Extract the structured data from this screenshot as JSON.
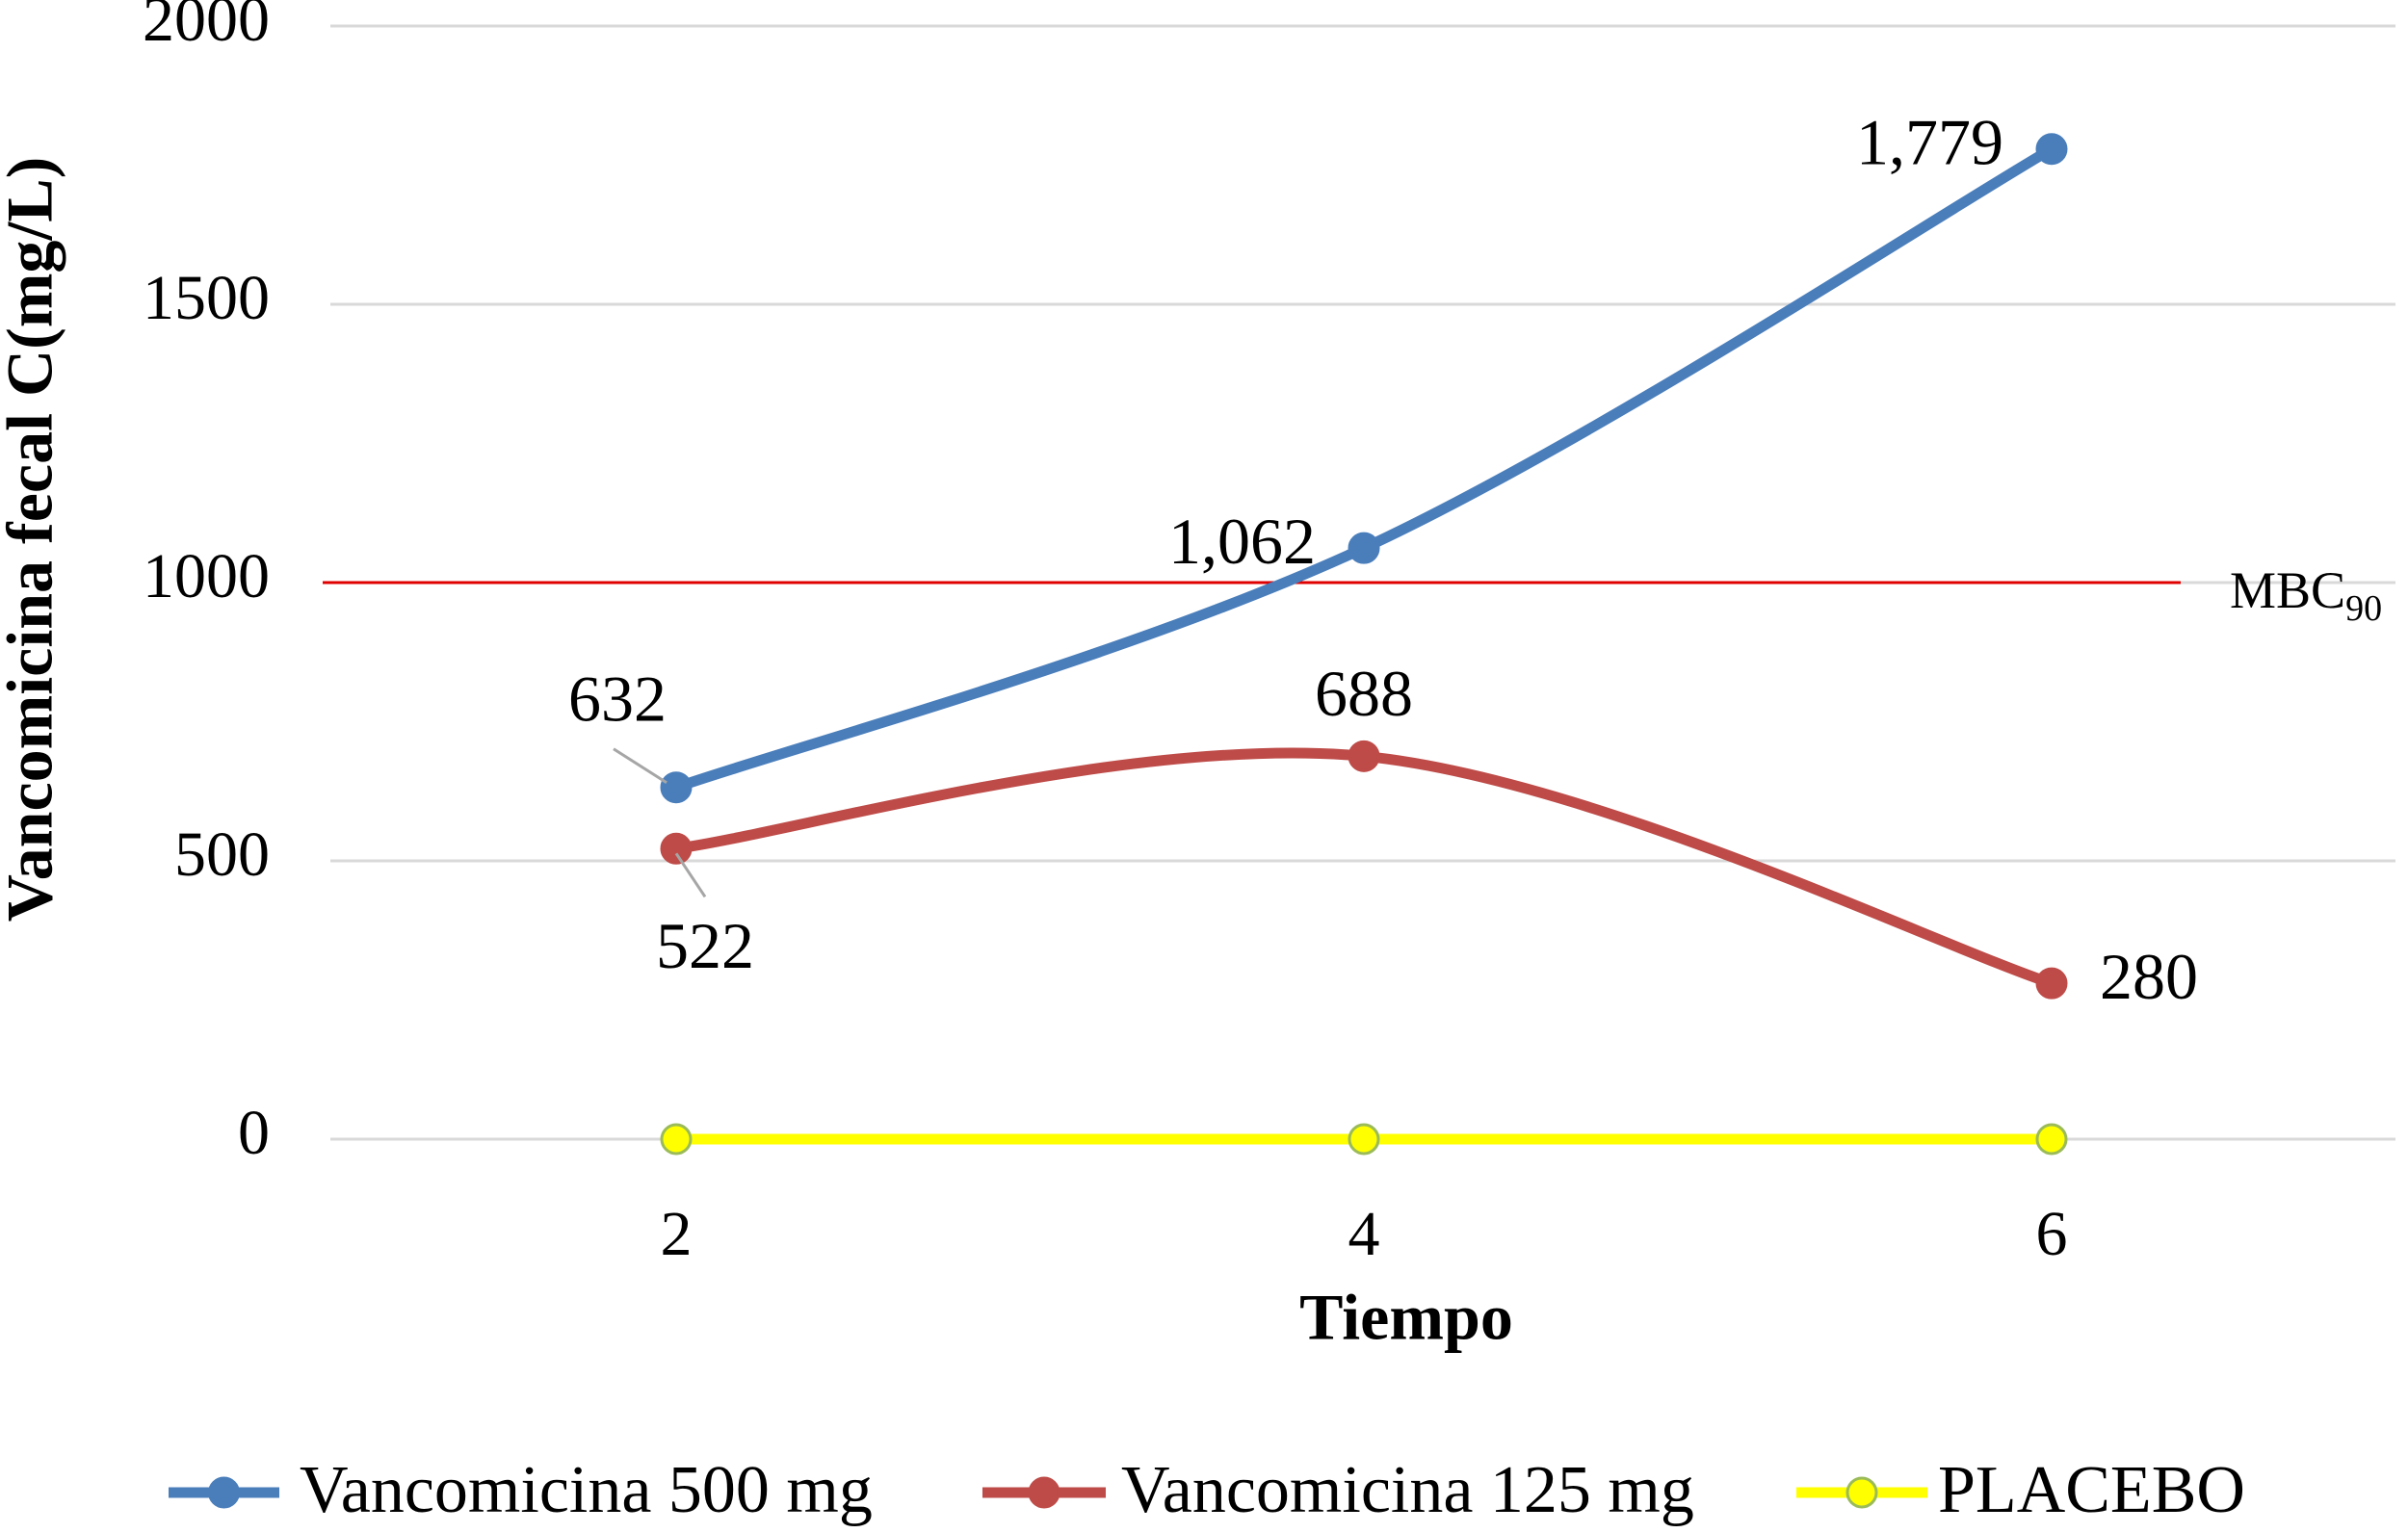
{
  "chart_data": {
    "type": "line",
    "y_label": "Vancomicina fecal C(mg/L)",
    "x_label": "Tiempo",
    "categories": [
      "2",
      "4",
      "6"
    ],
    "series": [
      {
        "name": "Vancomicina 500 mg",
        "color": "#4a7ebb",
        "values": [
          632,
          1062,
          1779
        ],
        "value_labels": [
          "632",
          "1,062",
          "1,779"
        ]
      },
      {
        "name": "Vancomicina 125 mg",
        "color": "#be4b48",
        "values": [
          522,
          688,
          280
        ],
        "value_labels": [
          "522",
          "688",
          "280"
        ]
      },
      {
        "name": "PLACEBO",
        "color": "#ffff00",
        "marker_edge": "#9bbb59",
        "values": [
          0,
          0,
          0
        ]
      }
    ],
    "ylim": [
      0,
      2000
    ],
    "yticks": [
      0,
      500,
      1000,
      1500,
      2000
    ],
    "grid": true,
    "smooth": true,
    "legend": "bottom",
    "reference_line": {
      "value": 1000,
      "color": "#e00000",
      "label": "MBC",
      "label_sub": "90"
    }
  }
}
